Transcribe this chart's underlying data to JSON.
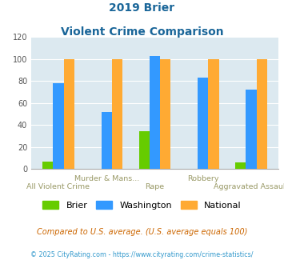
{
  "title_line1": "2019 Brier",
  "title_line2": "Violent Crime Comparison",
  "brier": [
    7,
    0,
    34,
    0,
    6
  ],
  "washington": [
    78,
    52,
    103,
    83,
    72
  ],
  "national": [
    100,
    100,
    100,
    100,
    100
  ],
  "brier_color": "#66cc00",
  "washington_color": "#3399ff",
  "national_color": "#ffaa33",
  "ylim": [
    0,
    120
  ],
  "yticks": [
    0,
    20,
    40,
    60,
    80,
    100,
    120
  ],
  "bg_color": "#dce9f0",
  "title_color": "#1a6699",
  "xlabel_color": "#999966",
  "legend_labels": [
    "Brier",
    "Washington",
    "National"
  ],
  "footnote1": "Compared to U.S. average. (U.S. average equals 100)",
  "footnote2": "© 2025 CityRating.com - https://www.cityrating.com/crime-statistics/",
  "footnote1_color": "#cc6600",
  "footnote2_color": "#3399cc",
  "bottom_labels": [
    "All Violent Crime",
    "",
    "Rape",
    "",
    "Aggravated Assault"
  ],
  "top_labels": [
    "",
    "Murder & Mans...",
    "",
    "Robbery",
    ""
  ]
}
